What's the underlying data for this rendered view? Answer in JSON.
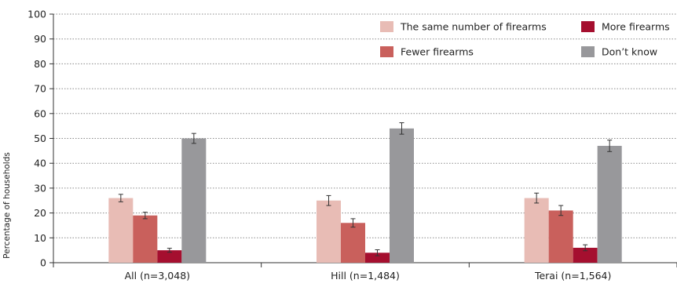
{
  "chart_data": {
    "type": "bar",
    "title": "",
    "xlabel": "",
    "ylabel": "Percentage of households",
    "ylim": [
      0,
      100
    ],
    "yticks": [
      0,
      10,
      20,
      30,
      40,
      50,
      60,
      70,
      80,
      90,
      100
    ],
    "grid": "horizontal dotted",
    "legend_position": "top-right",
    "categories": [
      "All (n=3,048)",
      "Hill (n=1,484)",
      "Terai (n=1,564)"
    ],
    "series": [
      {
        "name": "The same number of firearms",
        "color": "#e8bcb5",
        "values": [
          26,
          25,
          26
        ],
        "error": [
          1.5,
          2,
          2
        ]
      },
      {
        "name": "Fewer firearms",
        "color": "#c9605c",
        "values": [
          19,
          16,
          21
        ],
        "error": [
          1.3,
          1.7,
          2
        ]
      },
      {
        "name": "More firearms",
        "color": "#a50f2f",
        "values": [
          5,
          4,
          6
        ],
        "error": [
          0.8,
          1.2,
          1.2
        ]
      },
      {
        "name": "Don’t know",
        "color": "#98989b",
        "values": [
          50,
          54,
          47
        ],
        "error": [
          2,
          2.3,
          2.3
        ]
      }
    ],
    "legend_order": [
      0,
      2,
      1,
      3
    ]
  }
}
